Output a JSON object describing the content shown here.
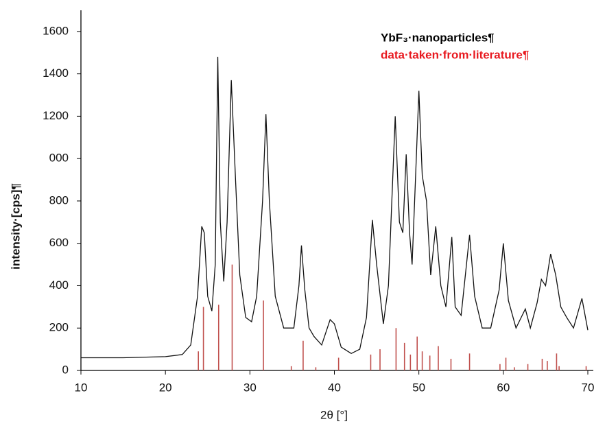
{
  "chart_data": {
    "type": "line",
    "xlabel": "2θ [°]",
    "ylabel": "intensity·[cps]¶",
    "xlim": [
      10,
      70
    ],
    "ylim": [
      0,
      1700
    ],
    "xticks": [
      10,
      20,
      30,
      40,
      50,
      60,
      70
    ],
    "yticks": [
      0,
      200,
      400,
      600,
      800,
      {
        "value": 1000,
        "label": "000"
      },
      1200,
      1400,
      1600
    ],
    "legend": "top right",
    "series": [
      {
        "name": "YbF₃·nanoparticles¶",
        "color": "#111111",
        "type": "line",
        "x": [
          10,
          15,
          20,
          22,
          23,
          23.8,
          24.3,
          24.6,
          25,
          25.5,
          25.9,
          26.2,
          26.5,
          26.9,
          27.3,
          27.8,
          28.3,
          28.8,
          29.5,
          30.2,
          30.8,
          31.5,
          31.9,
          32.3,
          33,
          34,
          35.2,
          35.8,
          36.1,
          36.5,
          37,
          37.6,
          38.5,
          39.5,
          40,
          40.8,
          42,
          43,
          43.8,
          44.5,
          45,
          45.8,
          46.4,
          47.2,
          47.7,
          48.1,
          48.5,
          48.9,
          49.2,
          49.6,
          50,
          50.4,
          50.9,
          51.4,
          52,
          52.6,
          53.2,
          53.9,
          54.3,
          55,
          56,
          56.6,
          57.5,
          58.5,
          59.5,
          60,
          60.6,
          61.5,
          62.6,
          63.2,
          64,
          64.5,
          65,
          65.6,
          66.2,
          66.8,
          67.5,
          68.3,
          69.3,
          70
        ],
        "values": [
          60,
          60,
          65,
          75,
          120,
          350,
          680,
          650,
          350,
          280,
          500,
          1480,
          700,
          420,
          700,
          1370,
          900,
          450,
          250,
          230,
          350,
          800,
          1210,
          800,
          350,
          200,
          200,
          400,
          590,
          380,
          200,
          160,
          120,
          240,
          220,
          110,
          80,
          100,
          250,
          710,
          500,
          220,
          400,
          1200,
          700,
          650,
          1020,
          650,
          500,
          900,
          1320,
          920,
          800,
          450,
          680,
          400,
          300,
          630,
          300,
          260,
          640,
          350,
          200,
          200,
          380,
          600,
          330,
          200,
          290,
          200,
          320,
          430,
          400,
          550,
          450,
          300,
          250,
          200,
          340,
          190
        ]
      },
      {
        "name": "data·taken·from·literature¶",
        "color": "#c0504d",
        "type": "stick",
        "x": [
          23.9,
          24.5,
          26.3,
          27.9,
          31.6,
          34.9,
          36.3,
          37.8,
          40.5,
          44.3,
          45.4,
          47.3,
          48.3,
          49.0,
          49.8,
          50.4,
          51.3,
          52.3,
          53.8,
          56,
          59.6,
          60.3,
          61.3,
          62.9,
          64.6,
          65.2,
          66.3,
          66.6,
          69.8
        ],
        "values": [
          90,
          300,
          310,
          500,
          330,
          20,
          140,
          15,
          60,
          75,
          100,
          200,
          130,
          75,
          160,
          90,
          70,
          115,
          55,
          80,
          30,
          60,
          15,
          30,
          55,
          45,
          80,
          20,
          20
        ]
      }
    ]
  }
}
